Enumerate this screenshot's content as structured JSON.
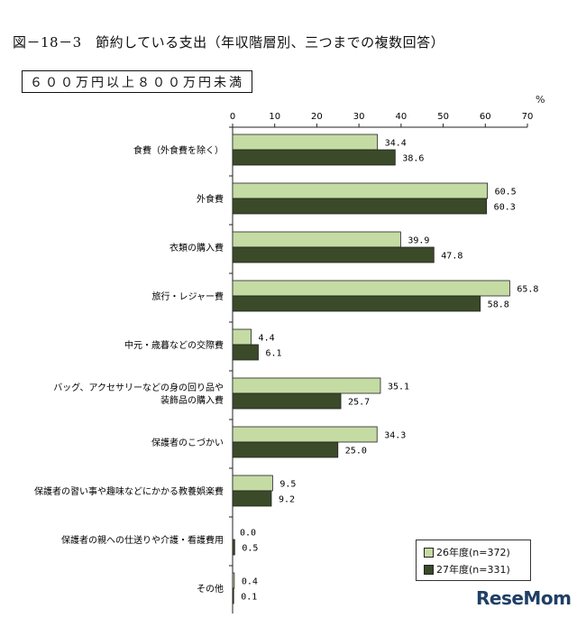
{
  "header": {
    "title": "図－18－3　節約している支出（年収階層別、三つまでの複数回答）",
    "subtitle": "６００万円以上８００万円未満",
    "unit": "%"
  },
  "legend": {
    "items": [
      "26年度(n=372)",
      "27年度(n=331)"
    ]
  },
  "watermark": {
    "text": "ReseMom"
  },
  "chart_data": {
    "type": "bar",
    "orientation": "horizontal",
    "title": "節約している支出（年収階層別、三つまでの複数回答）",
    "subtitle": "６００万円以上８００万円未満",
    "unit": "%",
    "xlim": [
      0,
      70
    ],
    "xticks": [
      0,
      10,
      20,
      30,
      40,
      50,
      60,
      70
    ],
    "legend_position": "bottom-right",
    "grid": false,
    "categories": [
      [
        "食費（外食費を除く）"
      ],
      [
        "外食費"
      ],
      [
        "衣類の購入費"
      ],
      [
        "旅行・レジャー費"
      ],
      [
        "中元・歳暮などの交際費"
      ],
      [
        "バッグ、アクセサリーなどの身の回り品や",
        "装飾品の購入費"
      ],
      [
        "保護者のこづかい"
      ],
      [
        "保護者の習い事や趣味などにかかる教養娯楽費"
      ],
      [
        "保護者の親への仕送りや介護・看護費用"
      ],
      [
        "その他"
      ]
    ],
    "series": [
      {
        "name": "26年度(n=372)",
        "color": "#c5dba4",
        "values": [
          34.4,
          60.5,
          39.9,
          65.8,
          4.4,
          35.1,
          34.3,
          9.5,
          0.0,
          0.4
        ]
      },
      {
        "name": "27年度(n=331)",
        "color": "#3b4a29",
        "values": [
          38.6,
          60.3,
          47.8,
          58.8,
          6.1,
          25.7,
          25.0,
          9.2,
          0.5,
          0.1
        ]
      }
    ]
  }
}
